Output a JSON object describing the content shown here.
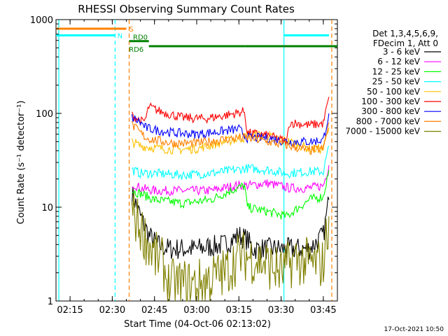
{
  "chart_data": {
    "type": "line",
    "title": "RHESSI Observing Summary Count Rates",
    "xlabel": "Start Time (04-Oct-06 02:13:02)",
    "ylabel": "Count Rate (s⁻¹ detector⁻¹)",
    "footer": "17-Oct-2021 10:50",
    "x_scale": "time",
    "x_range": [
      "02:10",
      "03:50"
    ],
    "x_ticks": [
      "02:15",
      "02:30",
      "02:45",
      "03:00",
      "03:15",
      "03:30",
      "03:45"
    ],
    "y_scale": "log",
    "ylim": [
      1,
      1000
    ],
    "y_ticks": [
      "1",
      "10",
      "100",
      "1000"
    ],
    "grid": false,
    "legend_position": "right",
    "legend": {
      "header": [
        "Det 1,3,4,5,6,9,",
        "FDecim 1, Att 0"
      ]
    },
    "series": [
      {
        "name": "3 - 6 keV",
        "color": "#000000",
        "points": [
          [
            "02:37",
            14
          ],
          [
            "02:40",
            8
          ],
          [
            "02:43",
            5
          ],
          [
            "02:46",
            4
          ],
          [
            "02:50",
            3.6
          ],
          [
            "03:00",
            3.6
          ],
          [
            "03:10",
            4
          ],
          [
            "03:15",
            5
          ],
          [
            "03:18",
            4.5
          ],
          [
            "03:20",
            3.6
          ],
          [
            "03:25",
            3.6
          ],
          [
            "03:33",
            3.6
          ],
          [
            "03:40",
            3.6
          ],
          [
            "03:45",
            5
          ],
          [
            "03:47",
            12
          ]
        ]
      },
      {
        "name": "6 - 12 keV",
        "color": "#ff00ff",
        "points": [
          [
            "02:37",
            18
          ],
          [
            "02:40",
            16
          ],
          [
            "02:45",
            15
          ],
          [
            "02:55",
            15
          ],
          [
            "03:05",
            15
          ],
          [
            "03:14",
            17
          ],
          [
            "03:18",
            17
          ],
          [
            "03:25",
            18
          ],
          [
            "03:33",
            16
          ],
          [
            "03:40",
            16
          ],
          [
            "03:45",
            17
          ],
          [
            "03:47",
            28
          ]
        ]
      },
      {
        "name": "12 - 25 keV",
        "color": "#00ff00",
        "points": [
          [
            "02:37",
            15
          ],
          [
            "02:40",
            14
          ],
          [
            "02:45",
            12
          ],
          [
            "02:55",
            11
          ],
          [
            "03:05",
            12
          ],
          [
            "03:12",
            15
          ],
          [
            "03:17",
            17
          ],
          [
            "03:18",
            10
          ],
          [
            "03:25",
            9
          ],
          [
            "03:32",
            8
          ],
          [
            "03:40",
            12
          ],
          [
            "03:45",
            13
          ],
          [
            "03:47",
            25
          ]
        ]
      },
      {
        "name": "25 - 50 keV",
        "color": "#00ffff",
        "points": [
          [
            "02:37",
            25
          ],
          [
            "02:40",
            23
          ],
          [
            "02:45",
            23
          ],
          [
            "02:55",
            22
          ],
          [
            "03:05",
            23
          ],
          [
            "03:14",
            25
          ],
          [
            "03:18",
            26
          ],
          [
            "03:25",
            25
          ],
          [
            "03:32",
            23
          ],
          [
            "03:40",
            24
          ],
          [
            "03:45",
            24
          ],
          [
            "03:47",
            45
          ]
        ]
      },
      {
        "name": "50 - 100 keV",
        "color": "#ffbf00",
        "points": [
          [
            "02:37",
            50
          ],
          [
            "02:40",
            45
          ],
          [
            "02:45",
            43
          ],
          [
            "02:52",
            41
          ],
          [
            "03:00",
            42
          ],
          [
            "03:10",
            50
          ],
          [
            "03:17",
            55
          ],
          [
            "03:18",
            60
          ],
          [
            "03:25",
            58
          ],
          [
            "03:33",
            50
          ],
          [
            "03:40",
            42
          ],
          [
            "03:45",
            42
          ],
          [
            "03:47",
            70
          ]
        ]
      },
      {
        "name": "100 - 300 keV",
        "color": "#ff0000",
        "points": [
          [
            "02:37",
            95
          ],
          [
            "02:41",
            80
          ],
          [
            "02:42",
            90
          ],
          [
            "02:43",
            118
          ],
          [
            "02:47",
            105
          ],
          [
            "02:55",
            90
          ],
          [
            "03:03",
            88
          ],
          [
            "03:10",
            95
          ],
          [
            "03:17",
            105
          ],
          [
            "03:18",
            62
          ],
          [
            "03:25",
            58
          ],
          [
            "03:32",
            50
          ],
          [
            "03:33",
            80
          ],
          [
            "03:40",
            75
          ],
          [
            "03:45",
            78
          ],
          [
            "03:47",
            150
          ]
        ]
      },
      {
        "name": "300 - 800 keV",
        "color": "#0000ff",
        "points": [
          [
            "02:37",
            90
          ],
          [
            "02:40",
            80
          ],
          [
            "02:42",
            70
          ],
          [
            "02:46",
            66
          ],
          [
            "02:52",
            62
          ],
          [
            "03:00",
            60
          ],
          [
            "03:08",
            64
          ],
          [
            "03:15",
            68
          ],
          [
            "03:18",
            55
          ],
          [
            "03:25",
            55
          ],
          [
            "03:32",
            50
          ],
          [
            "03:40",
            50
          ],
          [
            "03:45",
            52
          ],
          [
            "03:47",
            100
          ]
        ]
      },
      {
        "name": "800 - 7000 keV",
        "color": "#ff8000",
        "points": [
          [
            "02:37",
            75
          ],
          [
            "02:40",
            62
          ],
          [
            "02:42",
            55
          ],
          [
            "02:45",
            52
          ],
          [
            "02:52",
            48
          ],
          [
            "03:00",
            48
          ],
          [
            "03:08",
            52
          ],
          [
            "03:15",
            55
          ],
          [
            "03:18",
            55
          ],
          [
            "03:25",
            50
          ],
          [
            "03:33",
            45
          ],
          [
            "03:40",
            40
          ],
          [
            "03:45",
            42
          ],
          [
            "03:47",
            80
          ]
        ]
      },
      {
        "name": "7000 - 15000 keV",
        "color": "#808000",
        "points": [
          [
            "02:37",
            9
          ],
          [
            "02:40",
            6
          ],
          [
            "02:43",
            4
          ],
          [
            "02:45",
            3
          ],
          [
            "02:48",
            2.5
          ],
          [
            "02:50",
            1.5
          ],
          [
            "03:00",
            1.5
          ],
          [
            "03:10",
            2
          ],
          [
            "03:15",
            3
          ],
          [
            "03:18",
            3
          ],
          [
            "03:25",
            2.5
          ],
          [
            "03:30",
            2
          ],
          [
            "03:35",
            2.8
          ],
          [
            "03:40",
            2.5
          ],
          [
            "03:45",
            2.5
          ],
          [
            "03:47",
            8
          ]
        ]
      }
    ],
    "state_bars": [
      {
        "label": "S",
        "color": "#ff8000",
        "y": 800,
        "segments": [
          [
            "02:10",
            "02:35"
          ]
        ]
      },
      {
        "label": "N",
        "color": "#00ffff",
        "y": 680,
        "segments": [
          [
            "02:10",
            "02:31"
          ],
          [
            "03:31",
            "03:47"
          ]
        ]
      },
      {
        "label": "RD0",
        "color": "#008000",
        "y": 590,
        "segments": [
          [
            "02:36",
            "02:43"
          ]
        ]
      },
      {
        "label": "RD6",
        "color": "#008000",
        "y": 520,
        "segments": [
          [
            "02:43",
            "03:17"
          ],
          [
            "03:17",
            "03:31"
          ],
          [
            "03:31",
            "03:50"
          ]
        ]
      }
    ],
    "vertical_markers": [
      {
        "time": "02:11",
        "color": "#00ffff",
        "style": "solid"
      },
      {
        "time": "02:31",
        "color": "#00ffff",
        "style": "dashed"
      },
      {
        "time": "02:36",
        "color": "#ff8000",
        "style": "dashed"
      },
      {
        "time": "03:31",
        "color": "#00ffff",
        "style": "solid"
      },
      {
        "time": "03:48",
        "color": "#ff8000",
        "style": "dashed"
      }
    ]
  }
}
